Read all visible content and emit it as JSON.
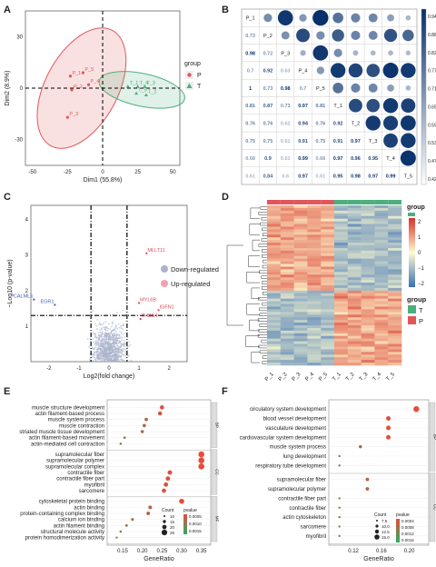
{
  "panels": [
    "A",
    "B",
    "C",
    "D",
    "E",
    "F"
  ],
  "colors": {
    "P": "#e15759",
    "T": "#4caf7d",
    "down": "#3f5fb0",
    "up": "#e0455a",
    "ns": "#aab2cc",
    "corr_low": "#ffffff",
    "corr_high": "#08306b",
    "heat_low": "#3a6fb5",
    "heat_mid": "#fffbd0",
    "heat_high": "#d73027",
    "dot": "#e74c3c"
  },
  "pca": {
    "xlabel": "Dim1 (55.8%)",
    "ylabel": "Dim2 (8.9%)",
    "xticks": [
      -50,
      -25,
      0,
      25,
      50
    ],
    "yticks": [
      -30,
      0,
      30
    ],
    "legend_title": "group",
    "legend_items": [
      "P",
      "T"
    ],
    "points": [
      {
        "label": "P_1",
        "x": -23,
        "y": 7,
        "group": "P"
      },
      {
        "label": "P_5",
        "x": -14,
        "y": 9,
        "group": "P"
      },
      {
        "label": "P_4",
        "x": -10,
        "y": 2,
        "group": "P"
      },
      {
        "label": "P_2",
        "x": -22,
        "y": -1,
        "group": "P"
      },
      {
        "label": "P_3",
        "x": -25,
        "y": -17,
        "group": "P"
      },
      {
        "label": "T_1",
        "x": 18,
        "y": 1,
        "group": "T"
      },
      {
        "label": "T_4",
        "x": 25,
        "y": 1,
        "group": "T"
      },
      {
        "label": "T_3",
        "x": 30,
        "y": 1,
        "group": "T"
      },
      {
        "label": "T_5",
        "x": 24,
        "y": -3,
        "group": "T"
      },
      {
        "label": "T_2",
        "x": 31,
        "y": -4,
        "group": "T"
      }
    ]
  },
  "corr": {
    "labels": [
      "P_1",
      "P_2",
      "P_3",
      "P_4",
      "P_5",
      "T_1",
      "T_2",
      "T_3",
      "T_4",
      "T_5"
    ],
    "lower": [
      [],
      [
        0.73
      ],
      [
        0.98,
        0.72
      ],
      [
        0.7,
        0.92,
        0.63
      ],
      [
        1,
        0.73,
        0.98,
        0.7
      ],
      [
        0.81,
        0.87,
        0.73,
        0.97,
        0.81
      ],
      [
        0.76,
        0.76,
        0.62,
        0.94,
        0.76,
        0.92
      ],
      [
        0.75,
        0.75,
        0.61,
        0.91,
        0.75,
        0.91,
        0.97
      ],
      [
        0.68,
        0.9,
        0.61,
        0.99,
        0.68,
        0.97,
        0.96,
        0.95
      ],
      [
        0.61,
        0.84,
        0.6,
        0.97,
        0.61,
        0.95,
        0.98,
        0.97,
        0.99
      ]
    ],
    "colorbar_ticks": [
      "0.94",
      "0.88",
      "0.82",
      "0.77",
      "0.71",
      "0.65",
      "0.59",
      "0.53",
      "0.47",
      "0.42"
    ]
  },
  "volcano": {
    "xlabel": "Log2(fold change)",
    "ylabel": "−Log10 (p-value)",
    "xticks": [
      -2,
      -1,
      0,
      1,
      2
    ],
    "yticks": [
      1,
      2,
      3,
      4
    ],
    "legend": [
      "Down-regulated",
      "Up-regulated"
    ],
    "labels": [
      {
        "text": "MLLT11",
        "x": 1.25,
        "y": 3.05
      },
      {
        "text": "MYL6B",
        "x": 1.0,
        "y": 1.65
      },
      {
        "text": "IGFN1",
        "x": 1.65,
        "y": 1.45
      },
      {
        "text": "THBS4",
        "x": 1.05,
        "y": 1.2
      },
      {
        "text": "CALML6",
        "x": -2.5,
        "y": 1.75
      },
      {
        "text": "EGR1",
        "x": -1.8,
        "y": 1.6
      }
    ]
  },
  "heatmap": {
    "columns": [
      "P_1",
      "P_2",
      "P_3",
      "P_4",
      "P_5",
      "T_1",
      "T_2",
      "T_3",
      "T_4",
      "T_5"
    ],
    "legend_title": "group",
    "legend_items": [
      "T",
      "P"
    ],
    "scale_ticks": [
      "2",
      "1",
      "0",
      "−1",
      "−2"
    ]
  },
  "go_e": {
    "xlabel": "GeneRatio",
    "xticks": [
      "0.15",
      "0.20",
      "0.25",
      "0.30",
      "0.35"
    ],
    "sections": [
      {
        "tag": "BP",
        "terms": [
          {
            "term": "muscle structure development",
            "ratio": 0.25
          },
          {
            "term": "actin filament-based process",
            "ratio": 0.245
          },
          {
            "term": "muscle system process",
            "ratio": 0.21
          },
          {
            "term": "muscle contraction",
            "ratio": 0.205
          },
          {
            "term": "striated muscle tissue development",
            "ratio": 0.2
          },
          {
            "term": "actin filament-based movement",
            "ratio": 0.155
          },
          {
            "term": "actin-mediated cell contraction",
            "ratio": 0.145
          }
        ]
      },
      {
        "tag": "CC",
        "terms": [
          {
            "term": "supramolecular fiber",
            "ratio": 0.35
          },
          {
            "term": "supramolecular polymer",
            "ratio": 0.35
          },
          {
            "term": "supramolecular complex",
            "ratio": 0.35
          },
          {
            "term": "contractile fiber",
            "ratio": 0.27
          },
          {
            "term": "contractile fiber part",
            "ratio": 0.265
          },
          {
            "term": "myofibril",
            "ratio": 0.26
          },
          {
            "term": "sarcomere",
            "ratio": 0.255
          }
        ]
      },
      {
        "tag": "MF",
        "terms": [
          {
            "term": "cytoskeletal protein binding",
            "ratio": 0.3
          },
          {
            "term": "actin binding",
            "ratio": 0.22
          },
          {
            "term": "protein-containing complex binding",
            "ratio": 0.215
          },
          {
            "term": "calcium ion binding",
            "ratio": 0.175
          },
          {
            "term": "actin filament binding",
            "ratio": 0.16
          },
          {
            "term": "structural molecule activity",
            "ratio": 0.145
          },
          {
            "term": "protein homodimerization activity",
            "ratio": 0.135
          }
        ]
      }
    ],
    "count_title": "Count",
    "count_values": [
      "10",
      "15",
      "20",
      "25"
    ],
    "p_title": "pvalue",
    "p_values": [
      "0.0005",
      "0.0010",
      "0.0015"
    ]
  },
  "go_f": {
    "xlabel": "GeneRatio",
    "xticks": [
      "0.12",
      "0.16",
      "0.20"
    ],
    "sections": [
      {
        "tag": "BP",
        "terms": [
          {
            "term": "circulatory system development",
            "ratio": 0.21
          },
          {
            "term": "blood vessel development",
            "ratio": 0.17
          },
          {
            "term": "vasculature development",
            "ratio": 0.17
          },
          {
            "term": "cardiovascular system development",
            "ratio": 0.17
          },
          {
            "term": "muscle system process",
            "ratio": 0.13
          },
          {
            "term": "lung development",
            "ratio": 0.1
          },
          {
            "term": "respiratory tube development",
            "ratio": 0.1
          }
        ]
      },
      {
        "tag": "CC",
        "terms": [
          {
            "term": "supramolecular fiber",
            "ratio": 0.14
          },
          {
            "term": "supramolecular polymer",
            "ratio": 0.14
          },
          {
            "term": "contractile fiber part",
            "ratio": 0.1
          },
          {
            "term": "contractile fiber",
            "ratio": 0.1
          },
          {
            "term": "actin cytoskeleton",
            "ratio": 0.1
          },
          {
            "term": "sarcomere",
            "ratio": 0.1
          },
          {
            "term": "myofibril",
            "ratio": 0.1
          }
        ]
      }
    ],
    "count_title": "Count",
    "count_values": [
      "7.5",
      "10.0",
      "12.5",
      "15.0"
    ],
    "p_title": "pvalue",
    "p_values": [
      "0.0004",
      "0.0008",
      "0.0012",
      "0.0016"
    ]
  }
}
